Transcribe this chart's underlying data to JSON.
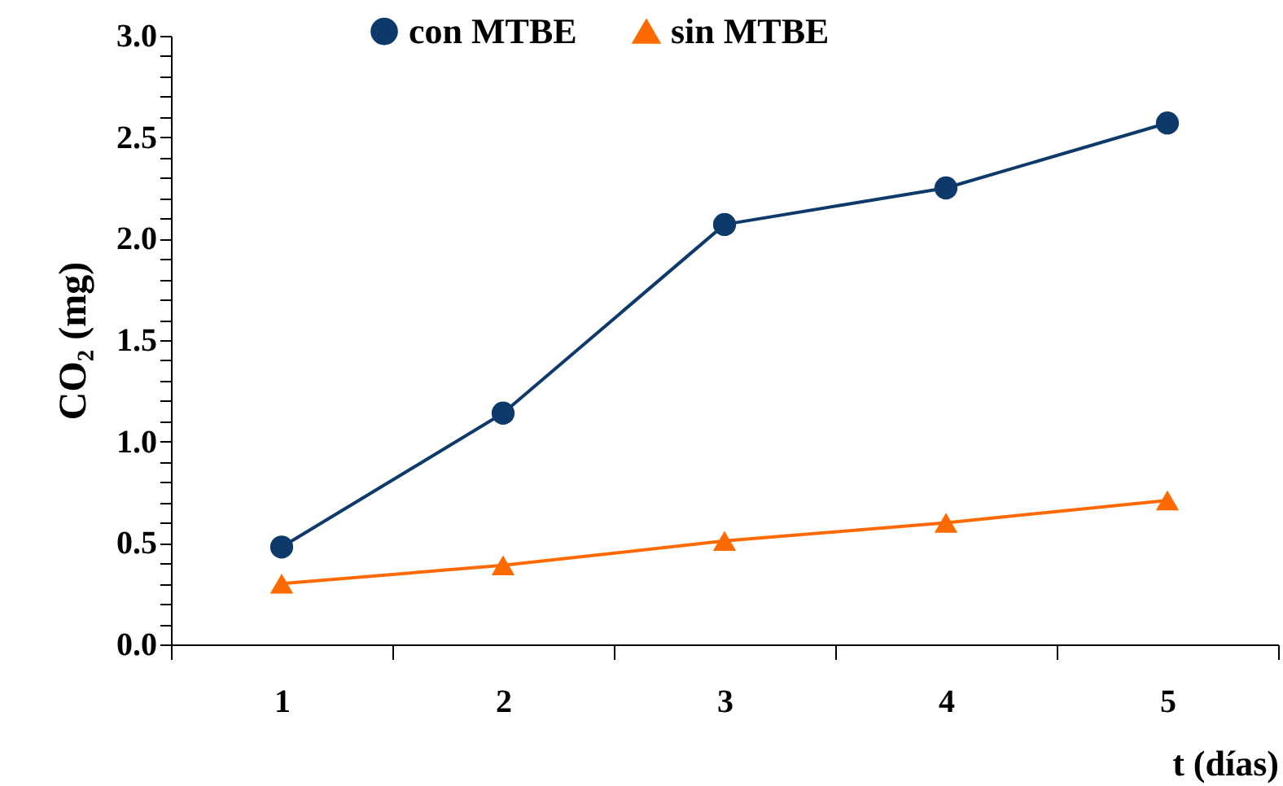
{
  "chart_data": {
    "type": "line",
    "xlabel": "t (días)",
    "ylabel": "CO₂ (mg)",
    "categories": [
      "1",
      "2",
      "3",
      "4",
      "5"
    ],
    "series": [
      {
        "name": "con MTBE",
        "color": "#0d3a6b",
        "marker": "circle",
        "values": [
          0.48,
          1.14,
          2.07,
          2.25,
          2.57
        ]
      },
      {
        "name": "sin MTBE",
        "color": "#ff6a00",
        "marker": "triangle",
        "values": [
          0.3,
          0.39,
          0.51,
          0.6,
          0.71
        ]
      }
    ],
    "ylim": [
      0,
      3
    ],
    "yticks": [
      {
        "value": 0,
        "label": "0.0"
      },
      {
        "value": 0.1,
        "label": null
      },
      {
        "value": 0.2,
        "label": null
      },
      {
        "value": 0.3,
        "label": null
      },
      {
        "value": 0.4,
        "label": null
      },
      {
        "value": 0.5,
        "label": "0.5"
      },
      {
        "value": 0.6,
        "label": null
      },
      {
        "value": 0.7,
        "label": null
      },
      {
        "value": 0.8,
        "label": null
      },
      {
        "value": 0.9,
        "label": null
      },
      {
        "value": 1,
        "label": "1.0"
      },
      {
        "value": 1.1,
        "label": null
      },
      {
        "value": 1.2,
        "label": null
      },
      {
        "value": 1.3,
        "label": null
      },
      {
        "value": 1.4,
        "label": null
      },
      {
        "value": 1.5,
        "label": "1.5"
      },
      {
        "value": 1.6,
        "label": null
      },
      {
        "value": 1.7,
        "label": null
      },
      {
        "value": 1.8,
        "label": null
      },
      {
        "value": 1.9,
        "label": null
      },
      {
        "value": 2,
        "label": "2.0"
      },
      {
        "value": 2.1,
        "label": null
      },
      {
        "value": 2.2,
        "label": null
      },
      {
        "value": 2.3,
        "label": null
      },
      {
        "value": 2.4,
        "label": null
      },
      {
        "value": 2.5,
        "label": "2.5"
      },
      {
        "value": 2.6,
        "label": null
      },
      {
        "value": 2.7,
        "label": null
      },
      {
        "value": 2.8,
        "label": null
      },
      {
        "value": 2.9,
        "label": null
      },
      {
        "value": 3,
        "label": "3.0"
      }
    ],
    "grid": false,
    "legend": "top",
    "line_style": "solid"
  }
}
